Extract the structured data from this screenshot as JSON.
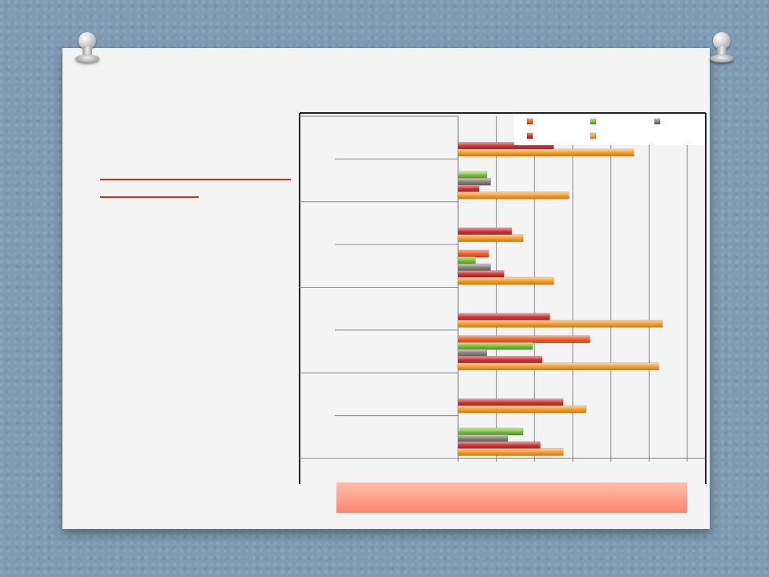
{
  "chart_data": {
    "type": "bar",
    "orientation": "horizontal",
    "grid": true,
    "legend_position": "top-right",
    "xlim": [
      0,
      6
    ],
    "groups": [
      {
        "rows": [
          {
            "values": [
              null,
              null,
              null,
              2.5,
              4.6
            ]
          },
          {
            "values": [
              null,
              0.75,
              0.85,
              0.55,
              2.9
            ]
          }
        ]
      },
      {
        "rows": [
          {
            "values": [
              null,
              null,
              null,
              1.4,
              1.7
            ]
          },
          {
            "values": [
              0.8,
              0.45,
              0.85,
              1.2,
              2.5
            ]
          }
        ]
      },
      {
        "rows": [
          {
            "values": [
              null,
              null,
              null,
              2.4,
              5.35
            ]
          },
          {
            "values": [
              3.45,
              1.95,
              0.75,
              2.2,
              5.25
            ]
          }
        ]
      },
      {
        "rows": [
          {
            "values": [
              null,
              null,
              null,
              2.75,
              3.35
            ]
          },
          {
            "values": [
              null,
              1.7,
              1.3,
              2.15,
              2.75
            ]
          }
        ]
      }
    ],
    "series": [
      {
        "color": "#f4602c"
      },
      {
        "color": "#7cc243"
      },
      {
        "color": "#8c857d"
      },
      {
        "color": "#d0373c"
      },
      {
        "color": "#f8a02e"
      }
    ]
  }
}
